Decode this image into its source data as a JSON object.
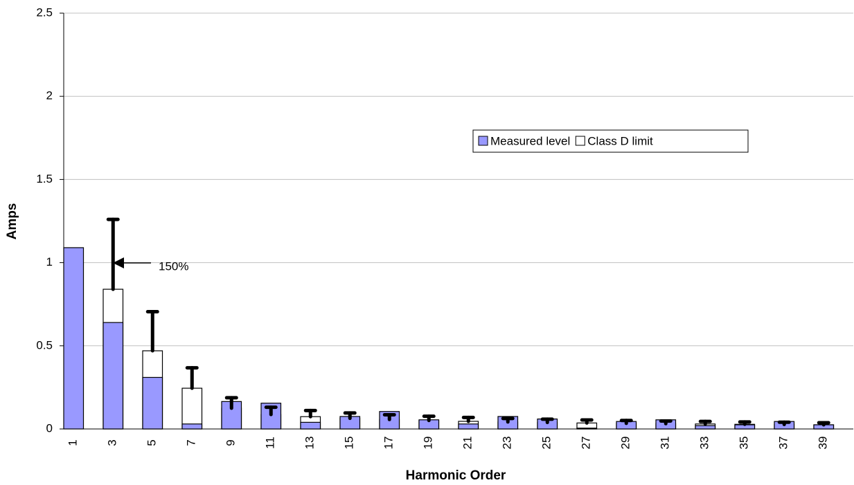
{
  "chart_data": {
    "type": "bar",
    "x_label": "Harmonic Order",
    "y_label": "Amps",
    "annotation": "150%",
    "categories": [
      "1",
      "3",
      "5",
      "7",
      "9",
      "11",
      "13",
      "15",
      "17",
      "19",
      "21",
      "23",
      "25",
      "27",
      "29",
      "31",
      "33",
      "35",
      "37",
      "39"
    ],
    "series": [
      {
        "name": "Measured level",
        "color": "#9999ff",
        "values": [
          1.09,
          0.64,
          0.31,
          0.03,
          0.165,
          0.155,
          0.04,
          0.075,
          0.105,
          0.055,
          0.03,
          0.075,
          0.06,
          0.005,
          0.045,
          0.055,
          0.02,
          0.025,
          0.045,
          0.025
        ]
      },
      {
        "name": "Class D limit",
        "color": "#ffffff",
        "values": [
          null,
          0.84,
          0.47,
          0.245,
          0.125,
          0.087,
          0.074,
          0.064,
          0.057,
          0.051,
          0.046,
          0.042,
          0.039,
          0.036,
          0.034,
          0.032,
          0.03,
          0.028,
          0.027,
          0.025
        ],
        "errors": [
          null,
          0.42,
          0.235,
          0.1225,
          0.0625,
          0.0435,
          0.037,
          0.032,
          0.0285,
          0.0255,
          0.023,
          0.021,
          0.0195,
          0.018,
          0.017,
          0.016,
          0.015,
          0.014,
          0.0135,
          0.0125
        ]
      }
    ],
    "ylim": [
      0,
      2.5
    ],
    "yticks": [
      0,
      0.5,
      1,
      1.5,
      2,
      2.5
    ],
    "grid": true,
    "legend": "upper right"
  }
}
